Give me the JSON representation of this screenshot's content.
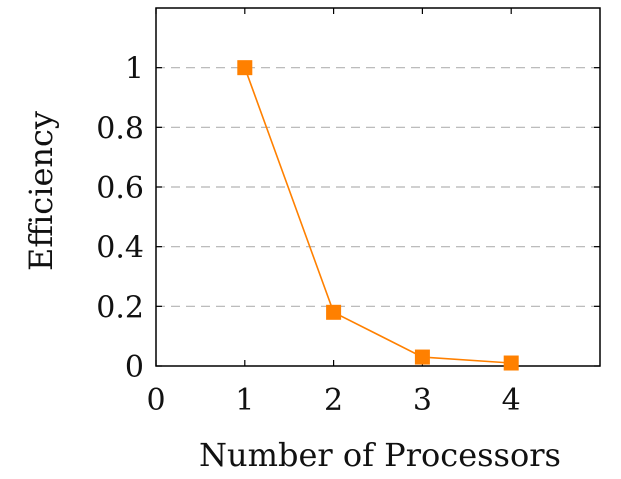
{
  "chart_data": {
    "type": "line",
    "xlabel": "Number of Processors",
    "ylabel": "Efficiency",
    "xlim": [
      0,
      5
    ],
    "ylim": [
      0,
      1.2
    ],
    "x_ticks": [
      0,
      1,
      2,
      3,
      4
    ],
    "y_ticks": [
      0,
      0.2,
      0.4,
      0.6,
      0.8,
      1
    ],
    "grid": "horizontal-dashed",
    "series": [
      {
        "x": [
          1,
          2,
          3,
          4
        ],
        "y": [
          1,
          0.18,
          0.03,
          0.01
        ],
        "color": "#ff8000",
        "marker": "square"
      }
    ]
  }
}
